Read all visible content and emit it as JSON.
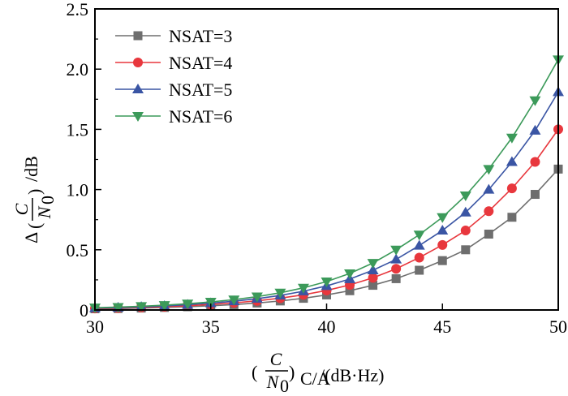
{
  "chart_data": {
    "type": "line",
    "title": "",
    "xlabel": {
      "numerator": "C",
      "denominator": "N",
      "denominator_sub": "0",
      "subscript": "C/A",
      "unit": "/(dB·Hz)"
    },
    "ylabel": {
      "prefix": "Δ",
      "numerator": "C",
      "denominator": "N",
      "denominator_sub": "0",
      "unit": "/dB"
    },
    "xlim": [
      30,
      50
    ],
    "ylim": [
      0,
      2.5
    ],
    "xticks": [
      30,
      35,
      40,
      45,
      50
    ],
    "xtick_labels": [
      "30",
      "35",
      "40",
      "45",
      "50"
    ],
    "yticks": [
      0,
      0.5,
      1.0,
      1.5,
      2.0,
      2.5
    ],
    "ytick_labels": [
      "0",
      "0.5",
      "1.0",
      "1.5",
      "2.0",
      "2.5"
    ],
    "grid": false,
    "legend_position": "top-left",
    "x": [
      30,
      31,
      32,
      33,
      34,
      35,
      36,
      37,
      38,
      39,
      40,
      41,
      42,
      43,
      44,
      45,
      46,
      47,
      48,
      49,
      50
    ],
    "series": [
      {
        "name": "NSAT=3",
        "color": "#6e6e6e",
        "marker": "square",
        "values": [
          0.01,
          0.012,
          0.016,
          0.021,
          0.027,
          0.035,
          0.045,
          0.058,
          0.075,
          0.097,
          0.125,
          0.16,
          0.205,
          0.26,
          0.33,
          0.41,
          0.5,
          0.63,
          0.77,
          0.96,
          1.17
        ]
      },
      {
        "name": "NSAT=4",
        "color": "#e8373d",
        "marker": "circle",
        "values": [
          0.013,
          0.016,
          0.021,
          0.027,
          0.035,
          0.046,
          0.059,
          0.076,
          0.098,
          0.126,
          0.162,
          0.208,
          0.267,
          0.342,
          0.435,
          0.54,
          0.66,
          0.82,
          1.01,
          1.23,
          1.5
        ]
      },
      {
        "name": "NSAT=5",
        "color": "#3a55a4",
        "marker": "triangle-up",
        "values": [
          0.016,
          0.02,
          0.026,
          0.034,
          0.044,
          0.057,
          0.073,
          0.094,
          0.121,
          0.156,
          0.2,
          0.257,
          0.33,
          0.42,
          0.535,
          0.66,
          0.81,
          1.0,
          1.23,
          1.49,
          1.81
        ]
      },
      {
        "name": "NSAT=6",
        "color": "#3c9a5a",
        "marker": "triangle-down",
        "values": [
          0.019,
          0.024,
          0.031,
          0.04,
          0.052,
          0.067,
          0.086,
          0.111,
          0.143,
          0.184,
          0.236,
          0.303,
          0.39,
          0.5,
          0.625,
          0.77,
          0.95,
          1.17,
          1.43,
          1.74,
          2.08
        ]
      }
    ]
  }
}
